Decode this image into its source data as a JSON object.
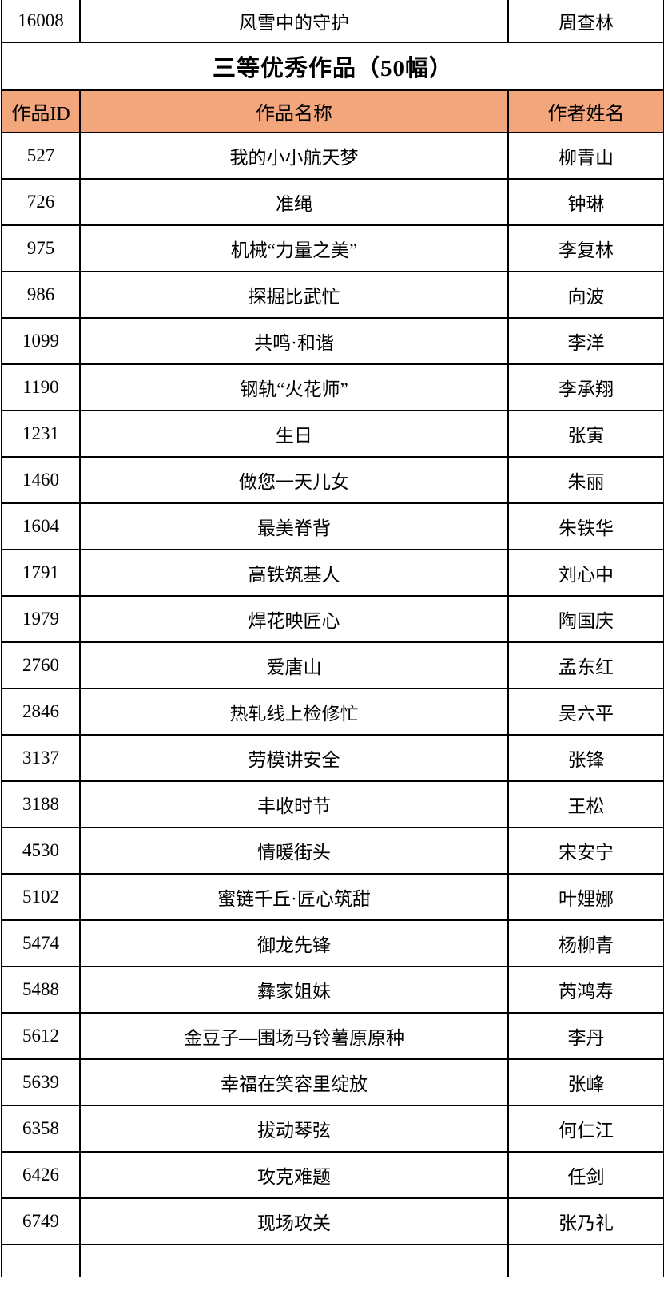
{
  "table": {
    "previous_row": {
      "id": "16008",
      "name": "风雪中的守护",
      "author": "周查林"
    },
    "section_title": "三等优秀作品（50幅）",
    "columns": {
      "id": "作品ID",
      "name": "作品名称",
      "author": "作者姓名"
    },
    "rows": [
      {
        "id": "527",
        "name": "我的小小航天梦",
        "author": "柳青山"
      },
      {
        "id": "726",
        "name": "准绳",
        "author": "钟琳"
      },
      {
        "id": "975",
        "name": "机械“力量之美”",
        "author": "李复林"
      },
      {
        "id": "986",
        "name": "探掘比武忙",
        "author": "向波"
      },
      {
        "id": "1099",
        "name": "共鸣·和谐",
        "author": "李洋"
      },
      {
        "id": "1190",
        "name": "钢轨“火花师”",
        "author": "李承翔"
      },
      {
        "id": "1231",
        "name": "生日",
        "author": "张寅"
      },
      {
        "id": "1460",
        "name": "做您一天儿女",
        "author": "朱丽"
      },
      {
        "id": "1604",
        "name": "最美脊背",
        "author": "朱铁华"
      },
      {
        "id": "1791",
        "name": "高铁筑基人",
        "author": "刘心中"
      },
      {
        "id": "1979",
        "name": "焊花映匠心",
        "author": "陶国庆"
      },
      {
        "id": "2760",
        "name": "爱唐山",
        "author": "孟东红"
      },
      {
        "id": "2846",
        "name": "热轧线上检修忙",
        "author": "吴六平"
      },
      {
        "id": "3137",
        "name": "劳模讲安全",
        "author": "张锋"
      },
      {
        "id": "3188",
        "name": "丰收时节",
        "author": "王松"
      },
      {
        "id": "4530",
        "name": "情暖街头",
        "author": "宋安宁"
      },
      {
        "id": "5102",
        "name": "蜜链千丘·匠心筑甜",
        "author": "叶娌娜"
      },
      {
        "id": "5474",
        "name": "御龙先锋",
        "author": "杨柳青"
      },
      {
        "id": "5488",
        "name": "彝家姐妹",
        "author": "芮鸿寿"
      },
      {
        "id": "5612",
        "name": "金豆子—围场马铃薯原原种",
        "author": "李丹"
      },
      {
        "id": "5639",
        "name": "幸福在笑容里绽放",
        "author": "张峰"
      },
      {
        "id": "6358",
        "name": "拔动琴弦",
        "author": "何仁江"
      },
      {
        "id": "6426",
        "name": "攻克难题",
        "author": "任剑"
      },
      {
        "id": "6749",
        "name": "现场攻关",
        "author": "张乃礼"
      }
    ],
    "colors": {
      "header_bg": "#F3A67C",
      "border": "#000000",
      "text": "#000000"
    }
  }
}
